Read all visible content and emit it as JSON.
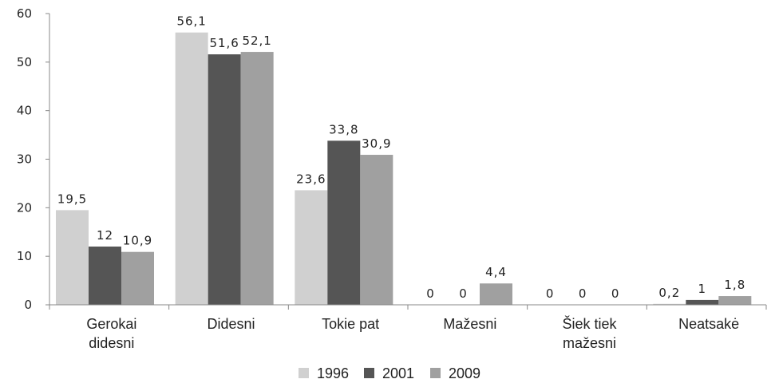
{
  "chart_data": {
    "type": "bar",
    "categories": [
      [
        "Gerokai",
        "didesni"
      ],
      [
        "Didesni"
      ],
      [
        "Tokie pat"
      ],
      [
        "Mažesni"
      ],
      [
        "Šiek tiek",
        "mažesni"
      ],
      [
        "Neatsakė"
      ]
    ],
    "series": [
      {
        "name": "1996",
        "color": "#d0d0d0",
        "values": [
          19.5,
          56.1,
          23.6,
          0,
          0,
          0.2
        ],
        "labels": [
          "19,5",
          "56,1",
          "23,6",
          "0",
          "0",
          "0,2"
        ]
      },
      {
        "name": "2001",
        "color": "#555555",
        "values": [
          12,
          51.6,
          33.8,
          0,
          0,
          1
        ],
        "labels": [
          "12",
          "51,6",
          "33,8",
          "0",
          "0",
          "1"
        ]
      },
      {
        "name": "2009",
        "color": "#a0a0a0",
        "values": [
          10.9,
          52.1,
          30.9,
          4.4,
          0,
          1.8
        ],
        "labels": [
          "10,9",
          "52,1",
          "30,9",
          "4,4",
          "0",
          "1,8"
        ]
      }
    ],
    "y_ticks": [
      "0",
      "10",
      "20",
      "30",
      "40",
      "50",
      "60"
    ],
    "ylim": [
      0,
      60
    ],
    "grid": false,
    "legend_position": "bottom",
    "title": "",
    "xlabel": "",
    "ylabel": ""
  }
}
